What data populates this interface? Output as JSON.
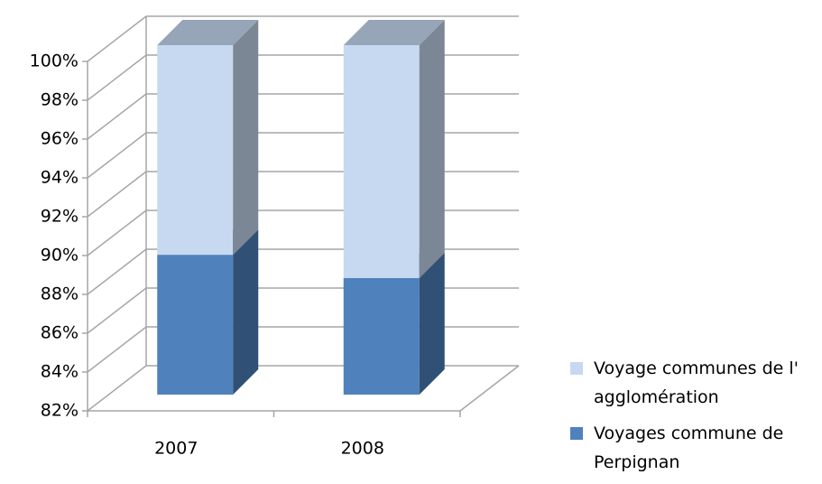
{
  "chart_data": {
    "type": "bar3d_stacked",
    "categories": [
      "2007",
      "2008"
    ],
    "series": [
      {
        "name": "Voyages commune de Perpignan",
        "color": "#4f81bd",
        "values": [
          89.2,
          88.0
        ]
      },
      {
        "name": "Voyage communes de l' agglomération",
        "color": "#c6d9f1",
        "values": [
          10.8,
          12.0
        ]
      }
    ],
    "ylim": [
      82,
      100
    ],
    "yticks": [
      {
        "value": 82,
        "label": "82%"
      },
      {
        "value": 84,
        "label": "84%"
      },
      {
        "value": 86,
        "label": "86%"
      },
      {
        "value": 88,
        "label": "88%"
      },
      {
        "value": 90,
        "label": "90%"
      },
      {
        "value": 92,
        "label": "92%"
      },
      {
        "value": 94,
        "label": "94%"
      },
      {
        "value": 96,
        "label": "96%"
      },
      {
        "value": 98,
        "label": "98%"
      },
      {
        "value": 100,
        "label": "100%"
      }
    ],
    "grid": true,
    "legend": "right"
  }
}
